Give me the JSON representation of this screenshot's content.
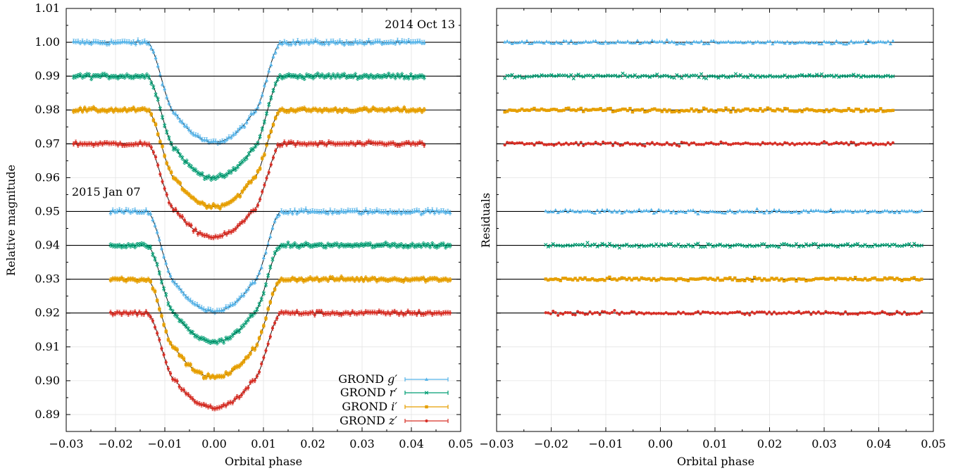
{
  "chart_data": [
    {
      "type": "scatter",
      "panel": "light curves",
      "xlabel": "Orbital phase",
      "ylabel": "Relative magnitude",
      "xlim": [
        -0.03,
        0.05
      ],
      "ylim": [
        0.885,
        1.01
      ],
      "y_inverted": true,
      "grid": true,
      "x_ticks": [
        "−0.03",
        "−0.02",
        "−0.01",
        "0.00",
        "0.01",
        "0.02",
        "0.03",
        "0.04",
        "0.05"
      ],
      "y_ticks": [
        "1.01",
        "1.00",
        "0.99",
        "0.98",
        "0.97",
        "0.96",
        "0.95",
        "0.94",
        "0.93",
        "0.92",
        "0.91",
        "0.90",
        "0.89"
      ],
      "annotations": [
        "2014 Oct 13",
        "2015 Jan 07"
      ],
      "legend_position": "bottom-right",
      "transit": {
        "half_width": 0.0137,
        "ingress_duration": 0.006
      },
      "series": [
        {
          "name": "GROND g′",
          "epoch": "2014 Oct 13",
          "baseline": 1.0,
          "depth": 0.0295,
          "x_range": [
            -0.0285,
            0.043
          ],
          "color": "#56b4e9",
          "marker": "triangle"
        },
        {
          "name": "GROND r′",
          "epoch": "2014 Oct 13",
          "baseline": 0.99,
          "depth": 0.03,
          "x_range": [
            -0.0285,
            0.043
          ],
          "color": "#009e73",
          "marker": "cross"
        },
        {
          "name": "GROND i′",
          "epoch": "2014 Oct 13",
          "baseline": 0.98,
          "depth": 0.0285,
          "x_range": [
            -0.0285,
            0.043
          ],
          "color": "#e69f00",
          "marker": "square"
        },
        {
          "name": "GROND z′",
          "epoch": "2014 Oct 13",
          "baseline": 0.97,
          "depth": 0.0275,
          "x_range": [
            -0.0285,
            0.043
          ],
          "color": "#d73027",
          "marker": "circle"
        },
        {
          "name": "GROND g′",
          "epoch": "2015 Jan 07",
          "baseline": 0.95,
          "depth": 0.0295,
          "x_range": [
            -0.021,
            0.048
          ],
          "color": "#56b4e9",
          "marker": "triangle"
        },
        {
          "name": "GROND r′",
          "epoch": "2015 Jan 07",
          "baseline": 0.94,
          "depth": 0.0285,
          "x_range": [
            -0.021,
            0.048
          ],
          "color": "#009e73",
          "marker": "cross"
        },
        {
          "name": "GROND i′",
          "epoch": "2015 Jan 07",
          "baseline": 0.93,
          "depth": 0.029,
          "x_range": [
            -0.021,
            0.048
          ],
          "color": "#e69f00",
          "marker": "square"
        },
        {
          "name": "GROND z′",
          "epoch": "2015 Jan 07",
          "baseline": 0.92,
          "depth": 0.028,
          "x_range": [
            -0.021,
            0.048
          ],
          "color": "#d73027",
          "marker": "circle"
        }
      ],
      "legend": [
        {
          "label": "GROND",
          "band": "g′",
          "color": "#56b4e9",
          "marker": "triangle"
        },
        {
          "label": "GROND",
          "band": "r′",
          "color": "#009e73",
          "marker": "cross"
        },
        {
          "label": "GROND",
          "band": "i′",
          "color": "#e69f00",
          "marker": "square"
        },
        {
          "label": "GROND",
          "band": "z′",
          "color": "#d73027",
          "marker": "circle"
        }
      ]
    },
    {
      "type": "scatter",
      "panel": "residuals",
      "xlabel": "Orbital phase",
      "ylabel": "Residuals",
      "xlim": [
        -0.03,
        0.05
      ],
      "ylim": [
        0.885,
        1.01
      ],
      "y_inverted": true,
      "grid": true,
      "x_ticks": [
        "−0.03",
        "−0.02",
        "−0.01",
        "0.00",
        "0.01",
        "0.02",
        "0.03",
        "0.04",
        "0.05"
      ],
      "series": [
        {
          "name": "GROND g′",
          "baseline": 1.0,
          "x_range": [
            -0.0285,
            0.043
          ],
          "color": "#56b4e9",
          "marker": "triangle"
        },
        {
          "name": "GROND r′",
          "baseline": 0.99,
          "x_range": [
            -0.0285,
            0.043
          ],
          "color": "#009e73",
          "marker": "cross"
        },
        {
          "name": "GROND i′",
          "baseline": 0.98,
          "x_range": [
            -0.0285,
            0.043
          ],
          "color": "#e69f00",
          "marker": "square"
        },
        {
          "name": "GROND z′",
          "baseline": 0.97,
          "x_range": [
            -0.0285,
            0.043
          ],
          "color": "#d73027",
          "marker": "circle"
        },
        {
          "name": "GROND g′",
          "baseline": 0.95,
          "x_range": [
            -0.021,
            0.048
          ],
          "color": "#56b4e9",
          "marker": "triangle"
        },
        {
          "name": "GROND r′",
          "baseline": 0.94,
          "x_range": [
            -0.021,
            0.048
          ],
          "color": "#009e73",
          "marker": "cross"
        },
        {
          "name": "GROND i′",
          "baseline": 0.93,
          "x_range": [
            -0.021,
            0.048
          ],
          "color": "#e69f00",
          "marker": "square"
        },
        {
          "name": "GROND z′",
          "baseline": 0.92,
          "x_range": [
            -0.021,
            0.048
          ],
          "color": "#d73027",
          "marker": "circle"
        }
      ]
    }
  ]
}
